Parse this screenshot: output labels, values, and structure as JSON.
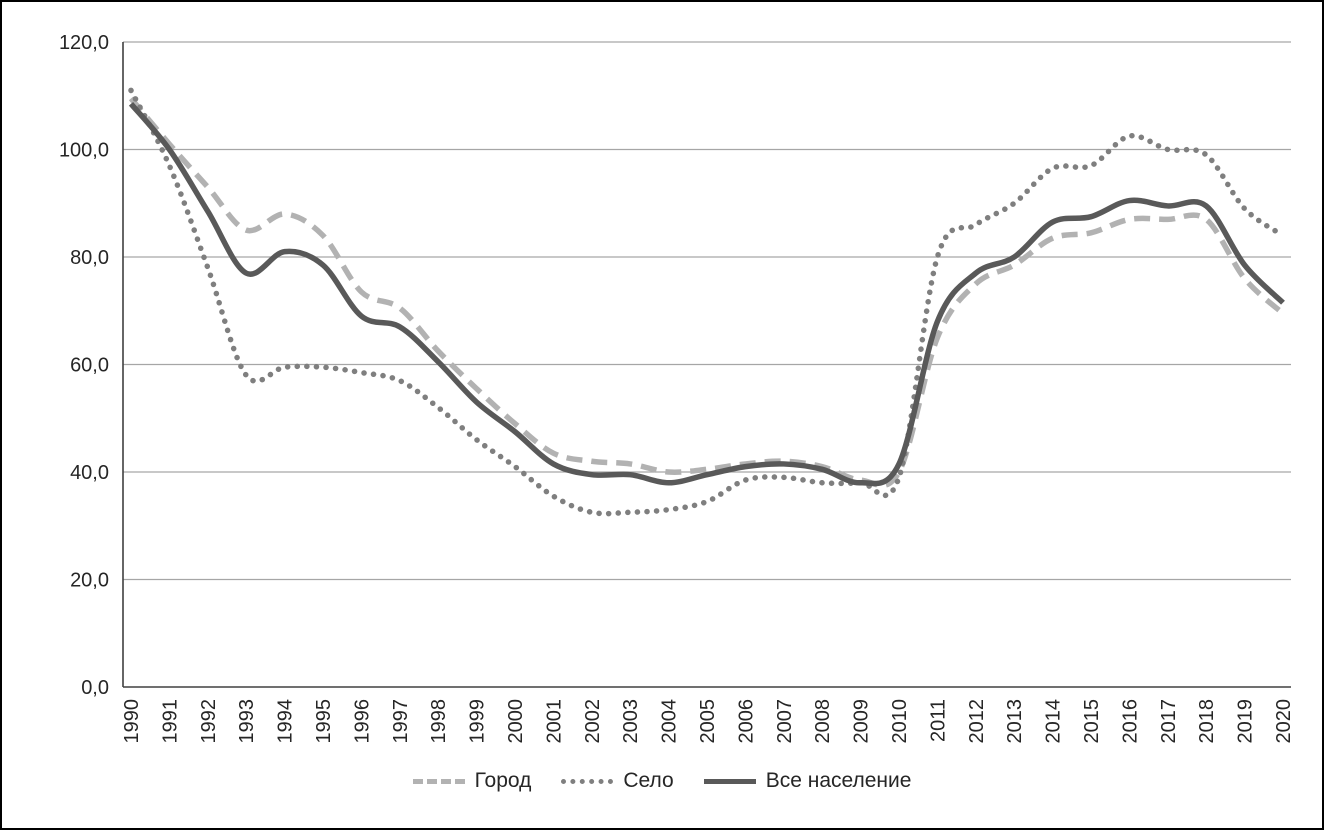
{
  "chart_data": {
    "type": "line",
    "title": "",
    "xlabel": "",
    "ylabel": "",
    "categories": [
      "1990",
      "1991",
      "1992",
      "1993",
      "1994",
      "1995",
      "1996",
      "1997",
      "1998",
      "1999",
      "2000",
      "2001",
      "2002",
      "2003",
      "2004",
      "2005",
      "2006",
      "2007",
      "2008",
      "2009",
      "2010",
      "2011",
      "2012",
      "2013",
      "2014",
      "2015",
      "2016",
      "2017",
      "2018",
      "2019",
      "2020"
    ],
    "series": [
      {
        "name": "Город",
        "style": "dashed",
        "color": "#b2b2b2",
        "values": [
          109.5,
          101,
          93,
          85,
          88,
          84,
          73.5,
          70.5,
          62.5,
          55.5,
          49,
          43.5,
          42,
          41.5,
          40,
          40.5,
          41.5,
          42,
          41,
          38.5,
          40,
          65,
          75,
          78.5,
          83.5,
          84.5,
          87,
          87,
          87,
          76,
          69.5
        ]
      },
      {
        "name": "Село",
        "style": "dotted",
        "color": "#7f7f7f",
        "values": [
          111,
          97,
          78,
          58,
          59.5,
          59.5,
          58.5,
          57,
          52,
          46,
          41,
          35.5,
          32.5,
          32.5,
          33,
          34.5,
          38.5,
          39,
          38,
          38,
          39,
          80,
          86,
          90,
          96.5,
          97,
          102.5,
          100,
          99,
          89,
          84
        ]
      },
      {
        "name": "Все население",
        "style": "solid",
        "color": "#595959",
        "values": [
          108.5,
          100,
          88.5,
          77,
          81,
          78.5,
          69,
          67,
          60.5,
          53,
          47.5,
          41.5,
          39.5,
          39.5,
          38,
          39.5,
          41,
          41.5,
          40.5,
          38,
          41.5,
          68,
          77,
          80,
          86.5,
          87.5,
          90.5,
          89.5,
          89.5,
          78.5,
          71.5
        ]
      }
    ],
    "ylim": [
      0,
      120
    ],
    "ytick_step": 20,
    "ytick_labels": [
      "0,0",
      "20,0",
      "40,0",
      "60,0",
      "80,0",
      "100,0",
      "120,0"
    ],
    "grid": "horizontal",
    "legend_position": "bottom",
    "colors": {
      "gridline": "#a6a6a6",
      "axis": "#404040",
      "text": "#262626"
    }
  }
}
